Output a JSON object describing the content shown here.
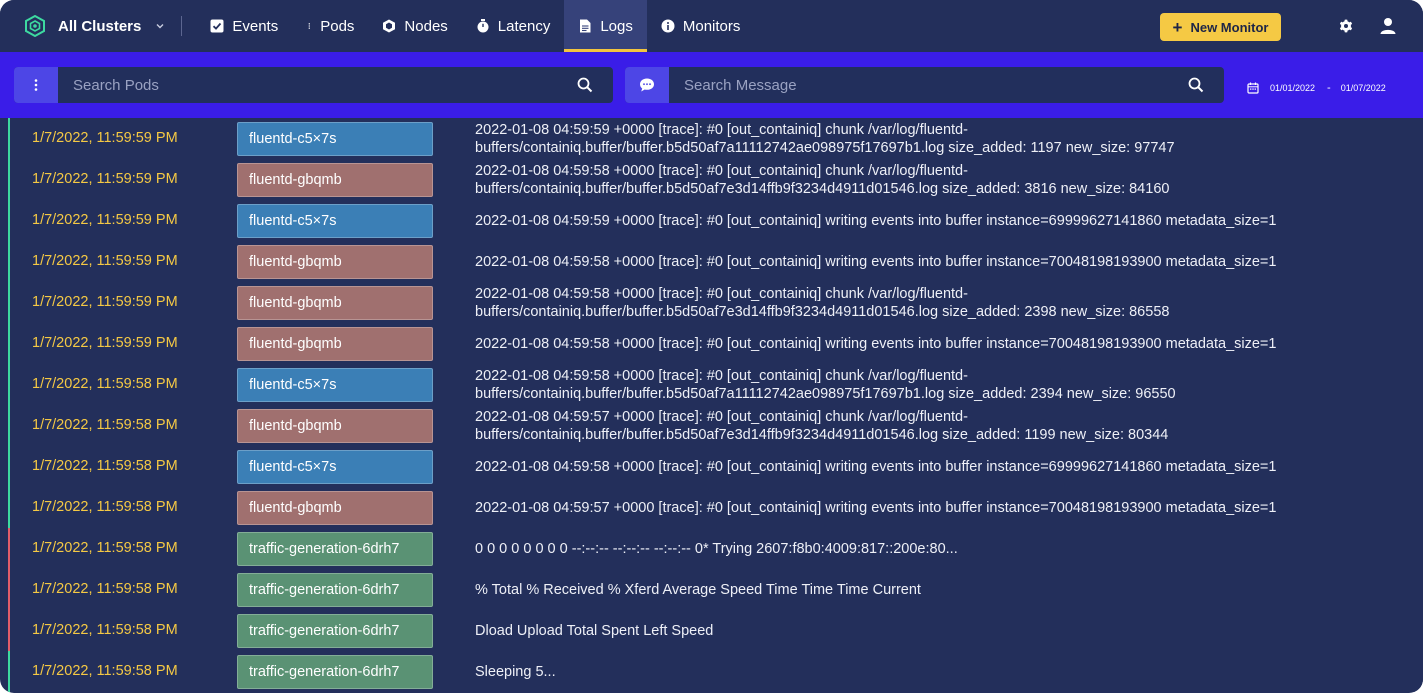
{
  "colors": {
    "app_bg": "#232f5b",
    "filter_bar_bg": "#3a1de8",
    "accent_yellow": "#f5c944",
    "pod_blue": "#3b7fb6",
    "pod_red": "#a0706f",
    "pod_green": "#5a9274",
    "status_ok": "#3dd9a0",
    "status_err": "#e35d6a"
  },
  "header": {
    "cluster_label": "All Clusters",
    "nav": [
      {
        "label": "Events",
        "icon": "check-square-icon"
      },
      {
        "label": "Pods",
        "icon": "vertical-dots-icon"
      },
      {
        "label": "Nodes",
        "icon": "hexagon-icon"
      },
      {
        "label": "Latency",
        "icon": "stopwatch-icon"
      },
      {
        "label": "Logs",
        "icon": "file-icon",
        "active": true
      },
      {
        "label": "Monitors",
        "icon": "info-circle-icon"
      }
    ],
    "new_monitor_label": "New Monitor",
    "settings_icon": "gear-icon",
    "user_icon": "user-icon"
  },
  "filters": {
    "pods_placeholder": "Search Pods",
    "message_placeholder": "Search Message",
    "date_from": "01/01/2022",
    "date_sep": "-",
    "date_to": "01/07/2022"
  },
  "logs": [
    {
      "time": "1/7/2022, 11:59:59 PM",
      "pod": "fluentd-c5×7s",
      "color": "pod_blue",
      "status": "ok",
      "message": "2022-01-08 04:59:59 +0000 [trace]: #0 [out_containiq] chunk /var/log/fluentd-\nbuffers/containiq.buffer/buffer.b5d50af7a11112742ae098975f17697b1.log size_added: 1197 new_size: 97747"
    },
    {
      "time": "1/7/2022, 11:59:59 PM",
      "pod": "fluentd-gbqmb",
      "color": "pod_red",
      "status": "ok",
      "message": "2022-01-08 04:59:58 +0000 [trace]: #0 [out_containiq] chunk /var/log/fluentd-\nbuffers/containiq.buffer/buffer.b5d50af7e3d14ffb9f3234d4911d01546.log size_added: 3816 new_size: 84160"
    },
    {
      "time": "1/7/2022, 11:59:59 PM",
      "pod": "fluentd-c5×7s",
      "color": "pod_blue",
      "status": "ok",
      "message": "2022-01-08 04:59:59 +0000 [trace]: #0 [out_containiq] writing events into buffer instance=69999627141860 metadata_size=1"
    },
    {
      "time": "1/7/2022, 11:59:59 PM",
      "pod": "fluentd-gbqmb",
      "color": "pod_red",
      "status": "ok",
      "message": "2022-01-08 04:59:58 +0000 [trace]: #0 [out_containiq] writing events into buffer instance=70048198193900 metadata_size=1"
    },
    {
      "time": "1/7/2022, 11:59:59 PM",
      "pod": "fluentd-gbqmb",
      "color": "pod_red",
      "status": "ok",
      "message": "2022-01-08 04:59:58 +0000 [trace]: #0 [out_containiq] chunk /var/log/fluentd-\nbuffers/containiq.buffer/buffer.b5d50af7e3d14ffb9f3234d4911d01546.log size_added: 2398 new_size: 86558"
    },
    {
      "time": "1/7/2022, 11:59:59 PM",
      "pod": "fluentd-gbqmb",
      "color": "pod_red",
      "status": "ok",
      "message": "2022-01-08 04:59:58 +0000 [trace]: #0 [out_containiq] writing events into buffer instance=70048198193900 metadata_size=1"
    },
    {
      "time": "1/7/2022, 11:59:58 PM",
      "pod": "fluentd-c5×7s",
      "color": "pod_blue",
      "status": "ok",
      "message": "2022-01-08 04:59:58 +0000 [trace]: #0 [out_containiq] chunk /var/log/fluentd-\nbuffers/containiq.buffer/buffer.b5d50af7a11112742ae098975f17697b1.log size_added: 2394 new_size: 96550"
    },
    {
      "time": "1/7/2022, 11:59:58 PM",
      "pod": "fluentd-gbqmb",
      "color": "pod_red",
      "status": "ok",
      "message": "2022-01-08 04:59:57 +0000 [trace]: #0 [out_containiq] chunk /var/log/fluentd-\nbuffers/containiq.buffer/buffer.b5d50af7e3d14ffb9f3234d4911d01546.log size_added: 1199 new_size: 80344"
    },
    {
      "time": "1/7/2022, 11:59:58 PM",
      "pod": "fluentd-c5×7s",
      "color": "pod_blue",
      "status": "ok",
      "message": "2022-01-08 04:59:58 +0000 [trace]: #0 [out_containiq] writing events into buffer instance=69999627141860 metadata_size=1"
    },
    {
      "time": "1/7/2022, 11:59:58 PM",
      "pod": "fluentd-gbqmb",
      "color": "pod_red",
      "status": "ok",
      "message": "2022-01-08 04:59:57 +0000 [trace]: #0 [out_containiq] writing events into buffer instance=70048198193900 metadata_size=1"
    },
    {
      "time": "1/7/2022, 11:59:58 PM",
      "pod": "traffic-generation-6drh7",
      "color": "pod_green",
      "status": "err",
      "message": "0 0 0 0 0 0 0 0 --:--:-- --:--:-- --:--:-- 0* Trying 2607:f8b0:4009:817::200e:80..."
    },
    {
      "time": "1/7/2022, 11:59:58 PM",
      "pod": "traffic-generation-6drh7",
      "color": "pod_green",
      "status": "err",
      "message": "% Total % Received % Xferd Average Speed Time Time Time Current"
    },
    {
      "time": "1/7/2022, 11:59:58 PM",
      "pod": "traffic-generation-6drh7",
      "color": "pod_green",
      "status": "err",
      "message": "Dload Upload Total Spent Left Speed"
    },
    {
      "time": "1/7/2022, 11:59:58 PM",
      "pod": "traffic-generation-6drh7",
      "color": "pod_green",
      "status": "ok",
      "message": "Sleeping 5..."
    }
  ]
}
